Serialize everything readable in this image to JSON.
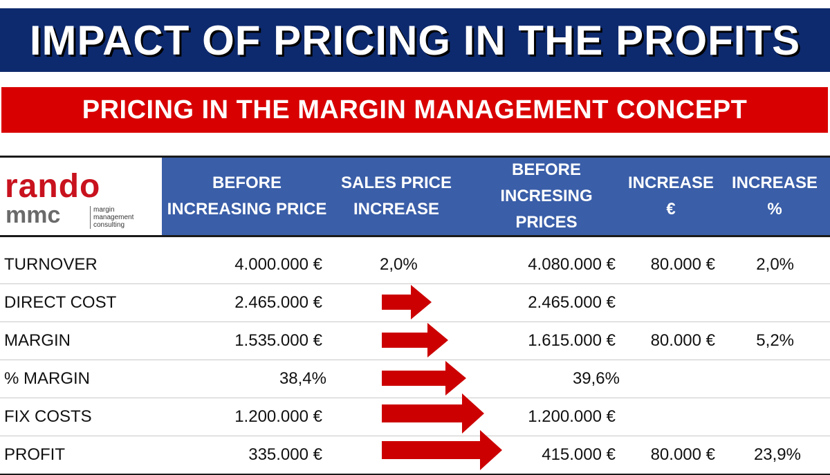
{
  "title": "IMPACT OF PRICING IN THE PROFITS",
  "subtitle": "PRICING IN THE MARGIN MANAGEMENT CONCEPT",
  "logo": {
    "brand_top": "rando",
    "brand_bottom": "mmc",
    "tagline_lines": [
      "margin",
      "management",
      "consulting"
    ]
  },
  "columns": {
    "before": [
      "BEFORE",
      "INCREASING PRICE"
    ],
    "increase": [
      "SALES PRICE",
      "INCREASE"
    ],
    "after": [
      "BEFORE",
      "INCRESING",
      "PRICES"
    ],
    "inc_eur": [
      "INCREASE",
      "€"
    ],
    "inc_pct": [
      "INCREASE",
      "%"
    ]
  },
  "rows": [
    {
      "label": "TURNOVER",
      "before": "4.000.000 €",
      "increase": "2,0%",
      "after": "4.080.000 €",
      "inc_eur": "80.000 €",
      "inc_pct": "2,0%"
    },
    {
      "label": "DIRECT COST",
      "before": "2.465.000 €",
      "increase": "",
      "after": "2.465.000 €",
      "inc_eur": "",
      "inc_pct": ""
    },
    {
      "label": "MARGIN",
      "before": "1.535.000 €",
      "increase": "",
      "after": "1.615.000 €",
      "inc_eur": "80.000 €",
      "inc_pct": "5,2%"
    },
    {
      "label": "% MARGIN",
      "before": "38,4%",
      "increase": "",
      "after": "39,6%",
      "inc_eur": "",
      "inc_pct": ""
    },
    {
      "label": "FIX COSTS",
      "before": "1.200.000 €",
      "increase": "",
      "after": "1.200.000 €",
      "inc_eur": "",
      "inc_pct": ""
    },
    {
      "label": "PROFIT",
      "before": "335.000 €",
      "increase": "",
      "after": "415.000 €",
      "inc_eur": "80.000 €",
      "inc_pct": "23,9%"
    }
  ],
  "icons": {
    "row_arrow": "right-arrow-icon"
  },
  "colors": {
    "title_bg": "#0e2a6e",
    "subtitle_bg": "#d80000",
    "header_bg": "#3a5ea8",
    "arrow": "#cc0000",
    "logo_red": "#c8121e"
  }
}
